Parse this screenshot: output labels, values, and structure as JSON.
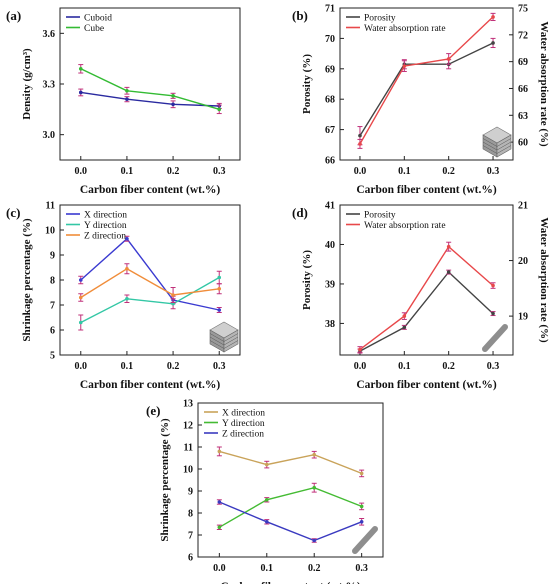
{
  "chart_data": [
    {
      "panel_label": "(a)",
      "type": "line",
      "x": [
        0.0,
        0.1,
        0.2,
        0.3
      ],
      "xlabel": "Carbon fiber content (wt.%)",
      "ylabel": "Density (g/cm³)",
      "ylim": [
        2.85,
        3.75
      ],
      "yticks": [
        "3.0",
        "3.3",
        "3.6"
      ],
      "legend_position": "top-left",
      "grid": false,
      "series": [
        {
          "name": "Cuboid",
          "color": "#2a2aa0",
          "axis": "left",
          "values": [
            3.25,
            3.21,
            3.18,
            3.17
          ],
          "errors": [
            0.02,
            0.015,
            0.02,
            0.015
          ]
        },
        {
          "name": "Cube",
          "color": "#33bb33",
          "axis": "left",
          "values": [
            3.39,
            3.26,
            3.23,
            3.15
          ],
          "errors": [
            0.025,
            0.02,
            0.015,
            0.025
          ]
        }
      ]
    },
    {
      "panel_label": "(b)",
      "type": "line",
      "x": [
        0.0,
        0.1,
        0.2,
        0.3
      ],
      "xlabel": "Carbon fiber content (wt.%)",
      "ylabel": "Porosity (%)",
      "ylabel_right": "Water absorption rate (%)",
      "ylim": [
        66,
        71
      ],
      "ylim_right": [
        58,
        75
      ],
      "yticks": [
        "66",
        "67",
        "68",
        "69",
        "70",
        "71"
      ],
      "yticks_right": [
        "60",
        "63",
        "66",
        "69",
        "72",
        "75"
      ],
      "legend_position": "top-left",
      "grid": false,
      "series": [
        {
          "name": "Porosity",
          "color": "#444444",
          "axis": "left",
          "values": [
            66.8,
            69.15,
            69.15,
            69.85
          ],
          "errors": [
            0.3,
            0.15,
            0.15,
            0.15
          ]
        },
        {
          "name": "Water absorption rate",
          "color": "#e8484a",
          "axis": "right",
          "values": [
            59.8,
            68.5,
            69.3,
            74.0
          ],
          "errors": [
            0.5,
            0.6,
            0.6,
            0.4
          ]
        }
      ]
    },
    {
      "panel_label": "(c)",
      "type": "line",
      "x": [
        0.0,
        0.1,
        0.2,
        0.3
      ],
      "xlabel": "Carbon fiber content (wt.%)",
      "ylabel": "Shrinkage percentage (%)",
      "ylim": [
        5,
        11
      ],
      "yticks": [
        "5",
        "6",
        "7",
        "8",
        "9",
        "10",
        "11"
      ],
      "legend_position": "top-left",
      "grid": false,
      "series": [
        {
          "name": "X direction",
          "color": "#3a3ad0",
          "axis": "left",
          "values": [
            8.0,
            9.65,
            7.2,
            6.8
          ],
          "errors": [
            0.15,
            0.1,
            0.15,
            0.1
          ]
        },
        {
          "name": "Y direction",
          "color": "#33c7a5",
          "axis": "left",
          "values": [
            6.3,
            7.25,
            7.05,
            8.1
          ],
          "errors": [
            0.3,
            0.15,
            0.2,
            0.25
          ]
        },
        {
          "name": "Z direction",
          "color": "#f08d3a",
          "axis": "left",
          "values": [
            7.3,
            8.45,
            7.4,
            7.65
          ],
          "errors": [
            0.15,
            0.2,
            0.3,
            0.2
          ]
        }
      ]
    },
    {
      "panel_label": "(d)",
      "type": "line",
      "x": [
        0.0,
        0.1,
        0.2,
        0.3
      ],
      "xlabel": "Carbon fiber content (wt.%)",
      "ylabel": "Porosity (%)",
      "ylabel_right": "Water absorption rate (%)",
      "ylim": [
        37.2,
        41
      ],
      "ylim_right": [
        18.3,
        21
      ],
      "yticks": [
        "38",
        "39",
        "40",
        "41"
      ],
      "yticks_right": [
        "19",
        "20",
        "21"
      ],
      "legend_position": "top-left",
      "grid": false,
      "series": [
        {
          "name": "Porosity",
          "color": "#444444",
          "axis": "left",
          "values": [
            37.3,
            37.9,
            39.3,
            38.25
          ],
          "errors": [
            0.05,
            0.05,
            0.05,
            0.05
          ]
        },
        {
          "name": "Water absorption rate",
          "color": "#e8484a",
          "axis": "right",
          "values": [
            18.4,
            19.0,
            20.25,
            19.55
          ],
          "errors": [
            0.05,
            0.06,
            0.08,
            0.05
          ]
        }
      ]
    },
    {
      "panel_label": "(e)",
      "type": "line",
      "x": [
        0.0,
        0.1,
        0.2,
        0.3
      ],
      "xlabel": "Carbon fiber content (wt.%)",
      "ylabel": "Shrinkage percentage (%)",
      "ylim": [
        6,
        13
      ],
      "yticks": [
        "6",
        "7",
        "8",
        "9",
        "10",
        "11",
        "12",
        "13"
      ],
      "legend_position": "top-left",
      "grid": false,
      "series": [
        {
          "name": "X direction",
          "color": "#c9a35a",
          "axis": "left",
          "values": [
            10.8,
            10.2,
            10.65,
            9.8
          ],
          "errors": [
            0.2,
            0.15,
            0.15,
            0.15
          ]
        },
        {
          "name": "Y direction",
          "color": "#44bb33",
          "axis": "left",
          "values": [
            7.35,
            8.6,
            9.15,
            8.3
          ],
          "errors": [
            0.1,
            0.1,
            0.2,
            0.15
          ]
        },
        {
          "name": "Z direction",
          "color": "#3a3ac0",
          "axis": "left",
          "values": [
            8.5,
            7.6,
            6.75,
            7.6
          ],
          "errors": [
            0.1,
            0.1,
            0.08,
            0.15
          ]
        }
      ]
    }
  ]
}
